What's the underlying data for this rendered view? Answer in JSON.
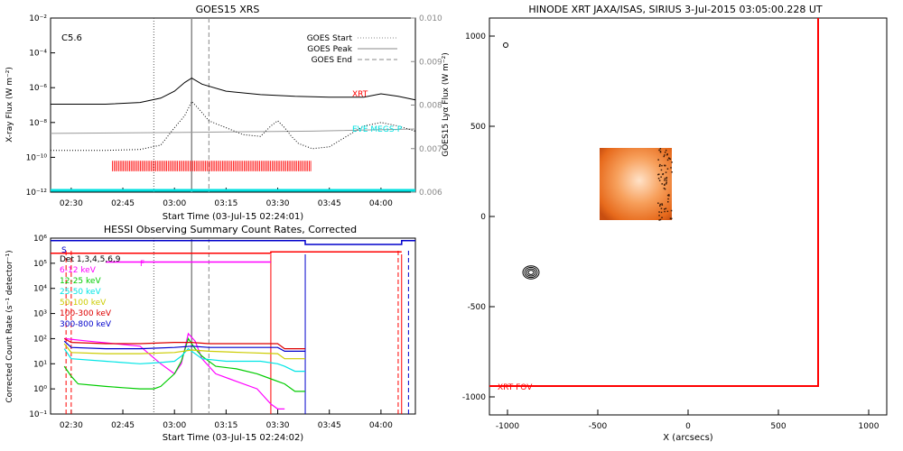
{
  "colors": {
    "axis": "#000000",
    "grid_gray": "#999999",
    "xrt_red": "#ff0000",
    "cyan": "#00e0e0",
    "magenta": "#ff00ff",
    "green": "#00cc00",
    "light_cyan": "#00e5e5",
    "yellow": "#cccc00",
    "dark_red": "#dd0000",
    "blue": "#0000cc",
    "orange": "#ff8c1a"
  },
  "chart_data": [
    {
      "id": "goes",
      "type": "line",
      "title": "GOES15 XRS",
      "xlabel": "Start Time (03-Jul-15 02:24:01)",
      "ylabel": "X-ray Flux (W m⁻²)",
      "ylabel_right": "GOES15 Lyα Flux (W m⁻²)",
      "xlim_min": [
        24,
        130
      ],
      "ylim_log10": [
        -12,
        -2
      ],
      "ylim_right": [
        0.006,
        0.01
      ],
      "x_ticks": [
        {
          "v": 30,
          "label": "02:30"
        },
        {
          "v": 45,
          "label": "02:45"
        },
        {
          "v": 60,
          "label": "03:00"
        },
        {
          "v": 75,
          "label": "03:15"
        },
        {
          "v": 90,
          "label": "03:30"
        },
        {
          "v": 105,
          "label": "03:45"
        },
        {
          "v": 120,
          "label": "04:00"
        }
      ],
      "y_ticks": [
        {
          "v": -2,
          "label": "10⁻²"
        },
        {
          "v": -4,
          "label": "10⁻⁴"
        },
        {
          "v": -6,
          "label": "10⁻⁶"
        },
        {
          "v": -8,
          "label": "10⁻⁸"
        },
        {
          "v": -10,
          "label": "10⁻¹⁰"
        },
        {
          "v": -12,
          "label": "10⁻¹²"
        }
      ],
      "y_ticks_right": [
        {
          "v": 0.01,
          "label": "0.010"
        },
        {
          "v": 0.009,
          "label": "0.009"
        },
        {
          "v": 0.008,
          "label": "0.008"
        },
        {
          "v": 0.007,
          "label": "0.007"
        },
        {
          "v": 0.006,
          "label": "0.006"
        }
      ],
      "flare_class": "C5.6",
      "legend": [
        {
          "name": "GOES Start",
          "style": "dotted"
        },
        {
          "name": "GOES Peak",
          "style": "solid"
        },
        {
          "name": "GOES End",
          "style": "dashed"
        }
      ],
      "event_times_min": {
        "start": 54,
        "peak": 65,
        "end": 70
      },
      "series": [
        {
          "name": "GOES long",
          "style": "solid",
          "color": "#000000",
          "x": [
            24,
            40,
            50,
            56,
            60,
            63,
            65,
            68,
            75,
            85,
            95,
            105,
            115,
            120,
            125,
            130
          ],
          "y_log10": [
            -6.95,
            -6.95,
            -6.85,
            -6.6,
            -6.2,
            -5.7,
            -5.45,
            -5.8,
            -6.2,
            -6.4,
            -6.5,
            -6.55,
            -6.55,
            -6.35,
            -6.5,
            -6.7
          ]
        },
        {
          "name": "GOES short",
          "style": "dotted",
          "color": "#000000",
          "x": [
            24,
            40,
            50,
            56,
            60,
            63,
            65,
            67,
            70,
            75,
            80,
            85,
            88,
            90,
            92,
            94,
            96,
            100,
            105,
            110,
            115,
            120,
            125,
            130
          ],
          "y_log10": [
            -9.6,
            -9.6,
            -9.55,
            -9.3,
            -8.3,
            -7.6,
            -6.8,
            -7.2,
            -7.9,
            -8.3,
            -8.7,
            -8.8,
            -8.2,
            -7.9,
            -8.3,
            -8.8,
            -9.2,
            -9.5,
            -9.4,
            -8.8,
            -8.2,
            -8.0,
            -8.2,
            -8.5
          ]
        },
        {
          "name": "EVE MEGS-P",
          "style": "solid",
          "color": "#999999",
          "x": [
            24,
            60,
            100,
            130
          ],
          "y_right": [
            0.00735,
            0.00737,
            0.0074,
            0.00745
          ]
        }
      ],
      "annotations": [
        {
          "text": "XRT",
          "color": "#ff0000"
        },
        {
          "text": "EVE MEGS-P",
          "color": "#00e0e0"
        }
      ],
      "xrt_obs_window_min": [
        42,
        100
      ]
    },
    {
      "id": "hessi",
      "type": "line",
      "title": "HESSI Observing Summary Count Rates, Corrected",
      "xlabel": "Start Time (03-Jul-15 02:24:02)",
      "ylabel": "Corrected Count Rate (s⁻¹ detector⁻¹)",
      "xlim_min": [
        24,
        130
      ],
      "ylim_log10": [
        -1,
        6
      ],
      "x_ticks": [
        {
          "v": 30,
          "label": "02:30"
        },
        {
          "v": 45,
          "label": "02:45"
        },
        {
          "v": 60,
          "label": "03:00"
        },
        {
          "v": 75,
          "label": "03:15"
        },
        {
          "v": 90,
          "label": "03:30"
        },
        {
          "v": 105,
          "label": "03:45"
        },
        {
          "v": 120,
          "label": "04:00"
        }
      ],
      "y_ticks": [
        {
          "v": -1,
          "label": "10⁻¹"
        },
        {
          "v": 0,
          "label": "10⁰"
        },
        {
          "v": 1,
          "label": "10¹"
        },
        {
          "v": 2,
          "label": "10²"
        },
        {
          "v": 3,
          "label": "10³"
        },
        {
          "v": 4,
          "label": "10⁴"
        },
        {
          "v": 5,
          "label": "10⁵"
        },
        {
          "v": 6,
          "label": "10⁶"
        }
      ],
      "legend_header": "Det 1,3,4,5,6,9",
      "flags": [
        "S",
        "F"
      ],
      "series": [
        {
          "name": "6-12 keV",
          "color": "#ff00ff",
          "x": [
            28,
            35,
            50,
            56,
            60,
            62,
            64,
            66,
            68,
            72,
            78,
            84,
            86,
            88,
            90,
            92
          ],
          "y_log10": [
            2.0,
            1.9,
            1.7,
            1.0,
            0.6,
            1.0,
            2.2,
            1.9,
            1.2,
            0.6,
            0.3,
            0.0,
            -0.3,
            -0.6,
            -0.8,
            -0.8
          ]
        },
        {
          "name": "12-25 keV",
          "color": "#00cc00",
          "x": [
            28,
            30,
            32,
            40,
            45,
            50,
            54,
            56,
            60,
            62,
            64,
            66,
            68,
            72,
            78,
            84,
            88,
            92,
            95,
            98
          ],
          "y_log10": [
            0.9,
            0.5,
            0.2,
            0.1,
            0.05,
            0.0,
            0.0,
            0.1,
            0.6,
            1.1,
            2.0,
            1.6,
            1.3,
            0.9,
            0.8,
            0.6,
            0.4,
            0.2,
            -0.1,
            -0.1
          ]
        },
        {
          "name": "25-50 keV",
          "color": "#00e5e5",
          "x": [
            28,
            30,
            40,
            50,
            56,
            60,
            62,
            64,
            66,
            68,
            75,
            85,
            90,
            92,
            95,
            98
          ],
          "y_log10": [
            1.6,
            1.2,
            1.1,
            1.0,
            1.05,
            1.1,
            1.3,
            1.6,
            1.4,
            1.2,
            1.1,
            1.1,
            1.0,
            0.9,
            0.7,
            0.7
          ]
        },
        {
          "name": "50-100 keV",
          "color": "#cccc00",
          "x": [
            28,
            30,
            40,
            50,
            60,
            65,
            70,
            80,
            90,
            92,
            95,
            98
          ],
          "y_log10": [
            1.8,
            1.45,
            1.4,
            1.4,
            1.45,
            1.55,
            1.5,
            1.45,
            1.4,
            1.2,
            1.2,
            1.2
          ]
        },
        {
          "name": "100-300 keV",
          "color": "#dd0000",
          "x": [
            28,
            30,
            40,
            50,
            60,
            65,
            70,
            80,
            90,
            92,
            95,
            98
          ],
          "y_log10": [
            2.0,
            1.85,
            1.8,
            1.8,
            1.85,
            1.85,
            1.8,
            1.8,
            1.8,
            1.6,
            1.6,
            1.6
          ]
        },
        {
          "name": "300-800 keV",
          "color": "#0000cc",
          "x": [
            28,
            30,
            40,
            50,
            60,
            65,
            70,
            80,
            90,
            92,
            95,
            98
          ],
          "y_log10": [
            1.9,
            1.65,
            1.6,
            1.6,
            1.65,
            1.7,
            1.65,
            1.65,
            1.65,
            1.5,
            1.5,
            1.5
          ]
        }
      ],
      "attenuator_events_min": [
        88,
        98,
        126
      ]
    },
    {
      "id": "xrt",
      "type": "map",
      "title": "HINODE XRT JAXA/ISAS, SIRIUS  3-Jul-2015 03:05:00.228 UT",
      "xlabel": "X (arcsecs)",
      "ylabel": "",
      "xlim": [
        -1100,
        1100
      ],
      "ylim": [
        -1100,
        1100
      ],
      "x_ticks": [
        {
          "v": -1000,
          "label": "-1000"
        },
        {
          "v": -500,
          "label": "-500"
        },
        {
          "v": 0,
          "label": "0"
        },
        {
          "v": 500,
          "label": "500"
        },
        {
          "v": 1000,
          "label": "1000"
        }
      ],
      "y_ticks": [
        {
          "v": 1000,
          "label": "1000"
        },
        {
          "v": 500,
          "label": "500"
        },
        {
          "v": 0,
          "label": "0"
        },
        {
          "v": -500,
          "label": "-500"
        },
        {
          "v": -1000,
          "label": "-1000"
        }
      ],
      "fov_label": "XRT FOV",
      "fov_x_range": [
        -1100,
        720
      ],
      "fov_y_range": [
        -940,
        1100
      ],
      "image_x_range": [
        -490,
        -90
      ],
      "image_y_range": [
        -20,
        380
      ],
      "contour_center": [
        -870,
        -310
      ],
      "marker_center": [
        -1010,
        950
      ]
    }
  ]
}
